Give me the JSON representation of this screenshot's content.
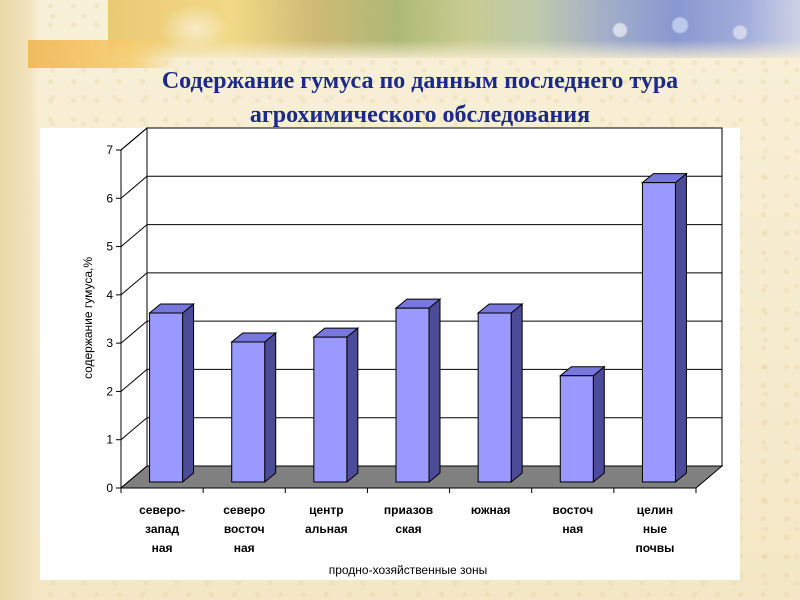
{
  "slide": {
    "title_line1": "Содержание гумуса по данным  последнего тура",
    "title_line2": "агрохимического  обследования"
  },
  "colors": {
    "title": "#1a2a8a",
    "bar_front": "#9999ff",
    "bar_top": "#7777dd",
    "bar_side": "#4b4b98",
    "floor": "#808080",
    "plot_background": "#ffffff",
    "gridline": "#000000"
  },
  "chart_data": {
    "type": "bar",
    "style": "3d-column",
    "title": "",
    "xlabel": "продно-хозяйственные зоны",
    "ylabel": "содержание гумуса,%",
    "ylim": [
      0,
      7
    ],
    "yticks": [
      0,
      1,
      2,
      3,
      4,
      5,
      6,
      7
    ],
    "grid": true,
    "legend": "none",
    "categories": [
      [
        "северо-",
        "запад",
        "ная"
      ],
      [
        "северо",
        "восточ",
        "ная"
      ],
      [
        "центр",
        "альная"
      ],
      [
        "приазов",
        "ская"
      ],
      [
        "южная"
      ],
      [
        "восточ",
        "ная"
      ],
      [
        "целин",
        "ные",
        "почвы"
      ]
    ],
    "values": [
      3.5,
      2.9,
      3.0,
      3.6,
      3.5,
      2.2,
      6.2
    ]
  }
}
